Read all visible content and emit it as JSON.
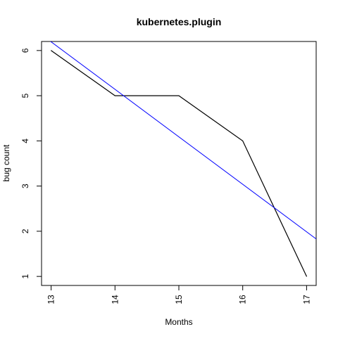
{
  "chart_data": {
    "type": "line",
    "title": "kubernetes.plugin",
    "xlabel": "Months",
    "ylabel": "bug count",
    "x": [
      13,
      14,
      15,
      16,
      17
    ],
    "xlim": [
      12.85,
      17.15
    ],
    "ylim": [
      0.8,
      6.2
    ],
    "x_ticks": [
      13,
      14,
      15,
      16,
      17
    ],
    "y_ticks": [
      1,
      2,
      3,
      4,
      5,
      6
    ],
    "x_tick_labels": [
      "13",
      "14",
      "15",
      "16",
      "17"
    ],
    "y_tick_labels": [
      "1",
      "2",
      "3",
      "4",
      "5",
      "6"
    ],
    "grid": false,
    "legend": "none",
    "series": [
      {
        "values": [
          6,
          5,
          5,
          4,
          1
        ],
        "color": "#000000"
      }
    ],
    "trend_line": {
      "x": [
        12.85,
        17.15
      ],
      "values": [
        6.35,
        1.83
      ],
      "color": "#0000ff"
    }
  }
}
